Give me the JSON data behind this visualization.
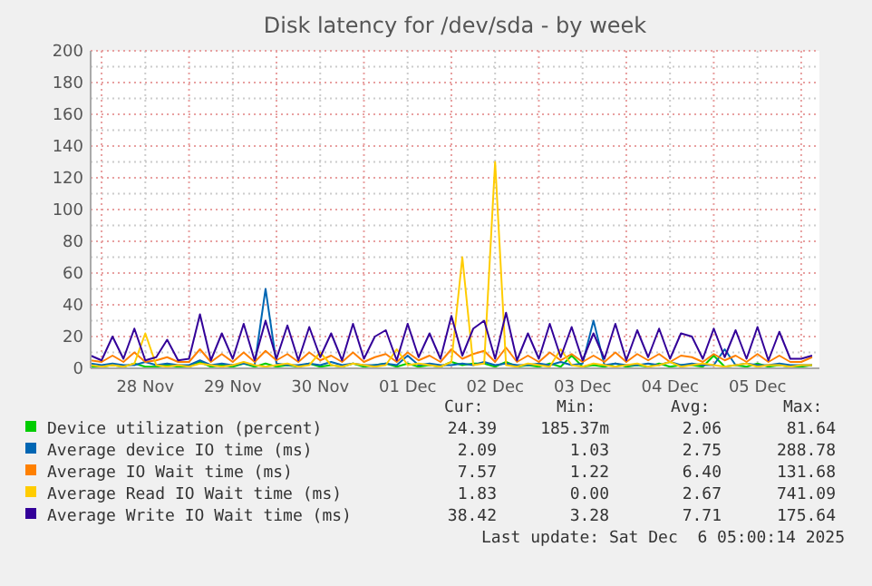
{
  "chart_data": {
    "type": "line",
    "title": "Disk latency for /dev/sda - by week",
    "x": [
      "2025-11-27T21:00",
      "2025-11-28T00:00",
      "2025-11-28T03:00",
      "2025-11-28T06:00",
      "2025-11-28T09:00",
      "2025-11-28T12:00",
      "2025-11-28T15:00",
      "2025-11-28T18:00",
      "2025-11-28T21:00",
      "2025-11-29T00:00",
      "2025-11-29T03:00",
      "2025-11-29T06:00",
      "2025-11-29T09:00",
      "2025-11-29T12:00",
      "2025-11-29T15:00",
      "2025-11-29T18:00",
      "2025-11-29T21:00",
      "2025-11-30T00:00",
      "2025-11-30T03:00",
      "2025-11-30T06:00",
      "2025-11-30T09:00",
      "2025-11-30T12:00",
      "2025-11-30T15:00",
      "2025-11-30T18:00",
      "2025-11-30T21:00",
      "2025-12-01T00:00",
      "2025-12-01T03:00",
      "2025-12-01T06:00",
      "2025-12-01T09:00",
      "2025-12-01T12:00",
      "2025-12-01T15:00",
      "2025-12-01T18:00",
      "2025-12-01T21:00",
      "2025-12-02T00:00",
      "2025-12-02T03:00",
      "2025-12-02T06:00",
      "2025-12-02T09:00",
      "2025-12-02T12:00",
      "2025-12-02T15:00",
      "2025-12-02T18:00",
      "2025-12-02T21:00",
      "2025-12-03T00:00",
      "2025-12-03T03:00",
      "2025-12-03T06:00",
      "2025-12-03T09:00",
      "2025-12-03T12:00",
      "2025-12-03T15:00",
      "2025-12-03T18:00",
      "2025-12-03T21:00",
      "2025-12-04T00:00",
      "2025-12-04T03:00",
      "2025-12-04T06:00",
      "2025-12-04T09:00",
      "2025-12-04T12:00",
      "2025-12-04T15:00",
      "2025-12-04T18:00",
      "2025-12-04T21:00",
      "2025-12-05T00:00",
      "2025-12-05T03:00",
      "2025-12-05T06:00",
      "2025-12-05T09:00",
      "2025-12-05T12:00",
      "2025-12-05T15:00",
      "2025-12-05T18:00",
      "2025-12-05T21:00",
      "2025-12-06T00:00",
      "2025-12-06T03:00"
    ],
    "series": [
      {
        "name": "Device utilization (percent)",
        "color": "#00cc00",
        "values": [
          1,
          1,
          2,
          1,
          3,
          1,
          1,
          2,
          1,
          1,
          4,
          1,
          2,
          1,
          3,
          1,
          3,
          1,
          2,
          1,
          3,
          1,
          2,
          1,
          3,
          1,
          2,
          3,
          1,
          3,
          1,
          2,
          1,
          4,
          2,
          3,
          3,
          1,
          4,
          1,
          2,
          1,
          3,
          1,
          8,
          1,
          2,
          1,
          3,
          1,
          2,
          1,
          3,
          1,
          2,
          2,
          1,
          8,
          1,
          2,
          1,
          3,
          1,
          2,
          1,
          1,
          2
        ]
      },
      {
        "name": "Average device IO time (ms)",
        "color": "#0066b3",
        "values": [
          3,
          2,
          3,
          2,
          2,
          4,
          2,
          3,
          2,
          2,
          5,
          2,
          3,
          2,
          3,
          2,
          50,
          3,
          2,
          2,
          3,
          2,
          4,
          2,
          3,
          2,
          2,
          3,
          2,
          8,
          2,
          3,
          2,
          2,
          3,
          2,
          4,
          2,
          3,
          2,
          2,
          3,
          2,
          4,
          2,
          3,
          30,
          2,
          3,
          2,
          2,
          3,
          2,
          4,
          2,
          3,
          2,
          2,
          12,
          2,
          3,
          2,
          2,
          3,
          2,
          2,
          2
        ]
      },
      {
        "name": "Average IO Wait time (ms)",
        "color": "#ff8000",
        "values": [
          5,
          4,
          8,
          4,
          10,
          4,
          5,
          7,
          4,
          4,
          12,
          4,
          9,
          4,
          10,
          4,
          11,
          5,
          9,
          4,
          10,
          5,
          8,
          4,
          10,
          4,
          7,
          9,
          4,
          10,
          5,
          8,
          4,
          12,
          6,
          9,
          11,
          4,
          13,
          4,
          8,
          4,
          10,
          5,
          9,
          4,
          8,
          4,
          10,
          4,
          9,
          5,
          9,
          4,
          8,
          7,
          4,
          9,
          5,
          8,
          4,
          9,
          4,
          8,
          4,
          4,
          7
        ]
      },
      {
        "name": "Average Read IO Wait time (ms)",
        "color": "#ffcc00",
        "values": [
          2,
          1,
          2,
          1,
          3,
          22,
          2,
          1,
          2,
          1,
          3,
          2,
          1,
          2,
          4,
          2,
          1,
          2,
          3,
          1,
          2,
          10,
          2,
          1,
          3,
          2,
          1,
          2,
          12,
          2,
          3,
          2,
          1,
          4,
          70,
          2,
          3,
          130,
          2,
          1,
          3,
          2,
          1,
          12,
          2,
          1,
          3,
          2,
          1,
          2,
          3,
          1,
          2,
          4,
          1,
          2,
          3,
          2,
          1,
          2,
          3,
          1,
          2,
          2,
          1,
          2,
          2
        ]
      },
      {
        "name": "Average Write IO Wait time (ms)",
        "color": "#330099",
        "values": [
          8,
          5,
          20,
          6,
          25,
          5,
          7,
          18,
          5,
          6,
          34,
          5,
          22,
          6,
          28,
          5,
          30,
          6,
          27,
          5,
          26,
          7,
          22,
          5,
          28,
          6,
          20,
          24,
          5,
          28,
          7,
          22,
          6,
          33,
          8,
          25,
          30,
          6,
          35,
          5,
          22,
          6,
          28,
          7,
          26,
          5,
          22,
          6,
          28,
          5,
          24,
          7,
          25,
          6,
          22,
          20,
          6,
          25,
          7,
          24,
          6,
          26,
          5,
          23,
          6,
          6,
          8
        ]
      }
    ],
    "xlim": [
      "2025-11-27T21:00",
      "2025-12-06T05:00"
    ],
    "xticks": [
      {
        "value": "2025-11-28T00:00",
        "label": null
      },
      {
        "value": "2025-11-28T12:00",
        "label": "28 Nov"
      },
      {
        "value": "2025-11-29T00:00",
        "label": null
      },
      {
        "value": "2025-11-29T12:00",
        "label": "29 Nov"
      },
      {
        "value": "2025-11-30T00:00",
        "label": null
      },
      {
        "value": "2025-11-30T12:00",
        "label": "30 Nov"
      },
      {
        "value": "2025-12-01T00:00",
        "label": null
      },
      {
        "value": "2025-12-01T12:00",
        "label": "01 Dec"
      },
      {
        "value": "2025-12-02T00:00",
        "label": null
      },
      {
        "value": "2025-12-02T12:00",
        "label": "02 Dec"
      },
      {
        "value": "2025-12-03T00:00",
        "label": null
      },
      {
        "value": "2025-12-03T12:00",
        "label": "03 Dec"
      },
      {
        "value": "2025-12-04T00:00",
        "label": null
      },
      {
        "value": "2025-12-04T12:00",
        "label": "04 Dec"
      },
      {
        "value": "2025-12-05T00:00",
        "label": null
      },
      {
        "value": "2025-12-05T12:00",
        "label": "05 Dec"
      },
      {
        "value": "2025-12-06T00:00",
        "label": null
      }
    ],
    "ylim": [
      0,
      200
    ],
    "yticks": [
      0,
      {
        "value": 10,
        "label": null
      },
      20,
      {
        "value": 30,
        "label": null
      },
      40,
      {
        "value": 50,
        "label": null
      },
      60,
      {
        "value": 70,
        "label": null
      },
      80,
      {
        "value": 90,
        "label": null
      },
      100,
      {
        "value": 110,
        "label": null
      },
      120,
      {
        "value": 130,
        "label": null
      },
      140,
      {
        "value": 150,
        "label": null
      },
      160,
      {
        "value": 170,
        "label": null
      },
      180,
      {
        "value": 190,
        "label": null
      },
      200
    ],
    "grid": true,
    "legend": "bottom",
    "line_style": "solid",
    "marker": "none",
    "annotations": [
      "Cur:",
      "Min:",
      "Avg:",
      "Max:",
      "24.39",
      "185.37m",
      "2.06",
      "81.64",
      "2.09",
      "1.03",
      "2.75",
      "288.78",
      "7.57",
      "1.22",
      "6.40",
      "131.68",
      "1.83",
      "0.00",
      "2.67",
      "741.09",
      "38.42",
      "3.28",
      "7.71",
      "175.64",
      "Last update: Sat Dec  6 05:00:14 2025"
    ]
  }
}
